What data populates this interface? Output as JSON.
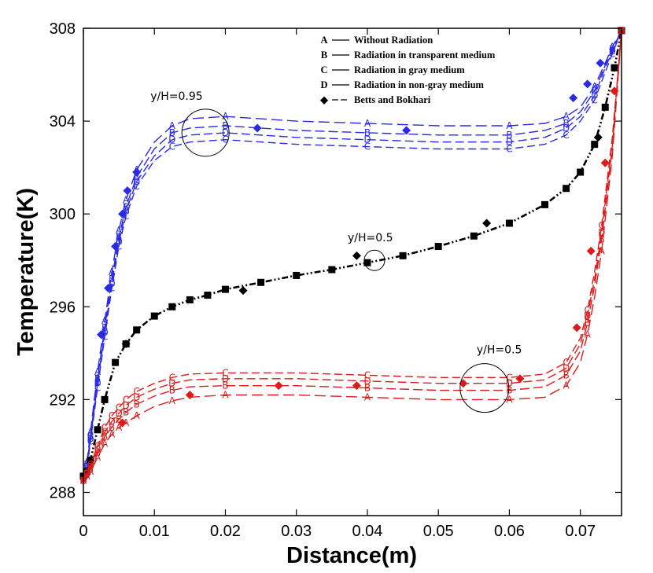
{
  "chart_data": {
    "type": "line",
    "xlabel": "Distance(m)",
    "ylabel": "Temperature(K)",
    "xlim": [
      0,
      0.0758
    ],
    "ylim": [
      287,
      308
    ],
    "xticks": [
      "0",
      "0.01",
      "0.02",
      "0.03",
      "0.04",
      "0.05",
      "0.06",
      "0.07"
    ],
    "yticks": [
      "288",
      "292",
      "296",
      "300",
      "304",
      "308"
    ],
    "colors": {
      "top": "#2a2ae6",
      "middle": "#000000",
      "bottom": "#dd1b1b"
    },
    "legend": [
      {
        "marker": "A",
        "label": "Without Radiation"
      },
      {
        "marker": "B",
        "label": "Radiation in transparent medium"
      },
      {
        "marker": "C",
        "label": "Radiation in gray medium"
      },
      {
        "marker": "D",
        "label": "Radiation in non-gray medium"
      },
      {
        "marker": "◆",
        "label": "Betts and Bokhari"
      }
    ],
    "annotations": [
      {
        "text": "y/H=0.95",
        "x": 0.0172,
        "y": 303.5
      },
      {
        "text": "y/H=0.5",
        "x": 0.041,
        "y": 298.0
      },
      {
        "text": "y/H=0.5",
        "x": 0.0565,
        "y": 292.5
      }
    ],
    "groups": [
      {
        "name": "y/H=0.95",
        "color": "top",
        "series": [
          {
            "marker": "A",
            "x": [
              0,
              0.0005,
              0.001,
              0.002,
              0.003,
              0.004,
              0.005,
              0.006,
              0.0075,
              0.01,
              0.0125,
              0.015,
              0.02,
              0.03,
              0.04,
              0.05,
              0.06,
              0.065,
              0.068,
              0.07,
              0.072,
              0.0735,
              0.0745,
              0.0758
            ],
            "y": [
              288.6,
              289.3,
              290.6,
              293.2,
              295.4,
              297.5,
              299.3,
              300.6,
              301.9,
              303.1,
              303.8,
              304.1,
              304.2,
              304.0,
              303.9,
              303.8,
              303.8,
              303.9,
              304.2,
              304.6,
              305.5,
              306.5,
              307.2,
              307.9
            ]
          },
          {
            "marker": "B",
            "x": [
              0,
              0.0005,
              0.001,
              0.002,
              0.003,
              0.004,
              0.005,
              0.006,
              0.0075,
              0.01,
              0.0125,
              0.015,
              0.02,
              0.03,
              0.04,
              0.05,
              0.06,
              0.065,
              0.068,
              0.07,
              0.072,
              0.0735,
              0.0745,
              0.0758
            ],
            "y": [
              288.6,
              289.2,
              290.4,
              292.9,
              295.1,
              297.2,
              299.0,
              300.3,
              301.6,
              302.8,
              303.5,
              303.7,
              303.8,
              303.6,
              303.5,
              303.4,
              303.4,
              303.6,
              303.9,
              304.4,
              305.3,
              306.4,
              307.1,
              307.9
            ]
          },
          {
            "marker": "D",
            "x": [
              0,
              0.0005,
              0.001,
              0.002,
              0.003,
              0.004,
              0.005,
              0.006,
              0.0075,
              0.01,
              0.0125,
              0.015,
              0.02,
              0.03,
              0.04,
              0.05,
              0.06,
              0.065,
              0.068,
              0.07,
              0.072,
              0.0735,
              0.0745,
              0.0758
            ],
            "y": [
              288.6,
              289.1,
              290.3,
              292.7,
              294.9,
              297.0,
              298.8,
              300.1,
              301.4,
              302.5,
              303.2,
              303.4,
              303.5,
              303.3,
              303.2,
              303.1,
              303.1,
              303.3,
              303.7,
              304.2,
              305.1,
              306.3,
              307.0,
              307.9
            ]
          },
          {
            "marker": "C",
            "x": [
              0,
              0.0005,
              0.001,
              0.002,
              0.003,
              0.004,
              0.005,
              0.006,
              0.0075,
              0.01,
              0.0125,
              0.015,
              0.02,
              0.03,
              0.04,
              0.05,
              0.06,
              0.065,
              0.068,
              0.07,
              0.072,
              0.0735,
              0.0745,
              0.0758
            ],
            "y": [
              288.6,
              289.0,
              290.2,
              292.5,
              294.7,
              296.8,
              298.6,
              299.9,
              301.2,
              302.3,
              302.9,
              303.1,
              303.2,
              303.0,
              302.9,
              302.8,
              302.8,
              303.0,
              303.4,
              304.0,
              304.9,
              306.1,
              306.9,
              307.9
            ]
          },
          {
            "marker": "◆",
            "x": [
              0.0025,
              0.0035,
              0.0045,
              0.0055,
              0.0062,
              0.0075,
              0.0245,
              0.0455,
              0.069,
              0.071,
              0.0728
            ],
            "y": [
              294.8,
              296.8,
              298.6,
              300.0,
              301.0,
              301.8,
              303.7,
              303.6,
              305.0,
              305.6,
              306.5
            ]
          }
        ]
      },
      {
        "name": "y/H=0.5 (center)",
        "color": "middle",
        "series": [
          {
            "marker": "■",
            "x": [
              0,
              0.0005,
              0.001,
              0.002,
              0.003,
              0.0045,
              0.006,
              0.0075,
              0.01,
              0.0125,
              0.015,
              0.0175,
              0.02,
              0.025,
              0.03,
              0.035,
              0.04,
              0.045,
              0.05,
              0.055,
              0.06,
              0.065,
              0.068,
              0.07,
              0.072,
              0.0735,
              0.0748,
              0.0758
            ],
            "y": [
              288.7,
              288.9,
              289.4,
              290.7,
              292.0,
              293.6,
              294.4,
              295.0,
              295.6,
              296.0,
              296.3,
              296.5,
              296.75,
              297.05,
              297.35,
              297.6,
              297.9,
              298.2,
              298.6,
              299.05,
              299.6,
              300.4,
              301.1,
              301.8,
              303.0,
              304.6,
              306.3,
              307.9
            ]
          },
          {
            "marker": "◆",
            "x": [
              0.006,
              0.0225,
              0.0385,
              0.0568,
              0.0725
            ],
            "y": [
              294.4,
              296.7,
              298.2,
              299.6,
              303.3
            ]
          }
        ]
      },
      {
        "name": "y/H=0.5 (lower)",
        "color": "bottom",
        "series": [
          {
            "marker": "A",
            "x": [
              0,
              0.0005,
              0.001,
              0.002,
              0.003,
              0.004,
              0.005,
              0.006,
              0.0075,
              0.01,
              0.0125,
              0.015,
              0.02,
              0.03,
              0.04,
              0.05,
              0.06,
              0.065,
              0.068,
              0.07,
              0.071,
              0.072,
              0.073,
              0.0745,
              0.0758
            ],
            "y": [
              288.5,
              288.7,
              288.9,
              289.5,
              290.1,
              290.5,
              290.8,
              291.0,
              291.3,
              291.7,
              291.95,
              292.1,
              292.2,
              292.2,
              292.1,
              292.0,
              292.0,
              292.1,
              292.6,
              293.6,
              294.8,
              296.4,
              298.4,
              302.5,
              307.9
            ]
          },
          {
            "marker": "B",
            "x": [
              0,
              0.0005,
              0.001,
              0.002,
              0.003,
              0.004,
              0.005,
              0.006,
              0.0075,
              0.01,
              0.0125,
              0.015,
              0.02,
              0.03,
              0.04,
              0.05,
              0.06,
              0.065,
              0.068,
              0.07,
              0.071,
              0.072,
              0.073,
              0.0745,
              0.0758
            ],
            "y": [
              288.5,
              288.75,
              289.0,
              289.7,
              290.4,
              290.8,
              291.15,
              291.45,
              291.8,
              292.15,
              292.4,
              292.55,
              292.6,
              292.6,
              292.5,
              292.4,
              292.4,
              292.55,
              293.05,
              294.1,
              295.3,
              296.9,
              298.9,
              302.9,
              307.9
            ]
          },
          {
            "marker": "D",
            "x": [
              0,
              0.0005,
              0.001,
              0.002,
              0.003,
              0.004,
              0.005,
              0.006,
              0.0075,
              0.01,
              0.0125,
              0.015,
              0.02,
              0.03,
              0.04,
              0.05,
              0.06,
              0.065,
              0.068,
              0.07,
              0.071,
              0.072,
              0.073,
              0.0745,
              0.0758
            ],
            "y": [
              288.5,
              288.8,
              289.1,
              289.85,
              290.6,
              291.05,
              291.4,
              291.75,
              292.1,
              292.45,
              292.7,
              292.85,
              292.9,
              292.9,
              292.8,
              292.7,
              292.7,
              292.85,
              293.35,
              294.4,
              295.6,
              297.2,
              299.2,
              303.1,
              307.9
            ]
          },
          {
            "marker": "C",
            "x": [
              0,
              0.0005,
              0.001,
              0.002,
              0.003,
              0.004,
              0.005,
              0.006,
              0.0075,
              0.01,
              0.0125,
              0.015,
              0.02,
              0.03,
              0.04,
              0.05,
              0.06,
              0.065,
              0.068,
              0.07,
              0.071,
              0.072,
              0.073,
              0.0745,
              0.0758
            ],
            "y": [
              288.5,
              288.85,
              289.2,
              290.0,
              290.8,
              291.3,
              291.65,
              292.0,
              292.35,
              292.7,
              292.95,
              293.1,
              293.15,
              293.15,
              293.05,
              292.95,
              292.95,
              293.1,
              293.6,
              294.65,
              295.85,
              297.5,
              299.5,
              303.3,
              307.9
            ]
          },
          {
            "marker": "◆",
            "x": [
              0.0055,
              0.015,
              0.0275,
              0.0385,
              0.0535,
              0.0615,
              0.0695,
              0.0715,
              0.0735,
              0.0748
            ],
            "y": [
              291.0,
              292.2,
              292.6,
              292.6,
              292.7,
              292.9,
              295.1,
              298.4,
              302.2,
              305.3
            ]
          }
        ]
      }
    ]
  }
}
